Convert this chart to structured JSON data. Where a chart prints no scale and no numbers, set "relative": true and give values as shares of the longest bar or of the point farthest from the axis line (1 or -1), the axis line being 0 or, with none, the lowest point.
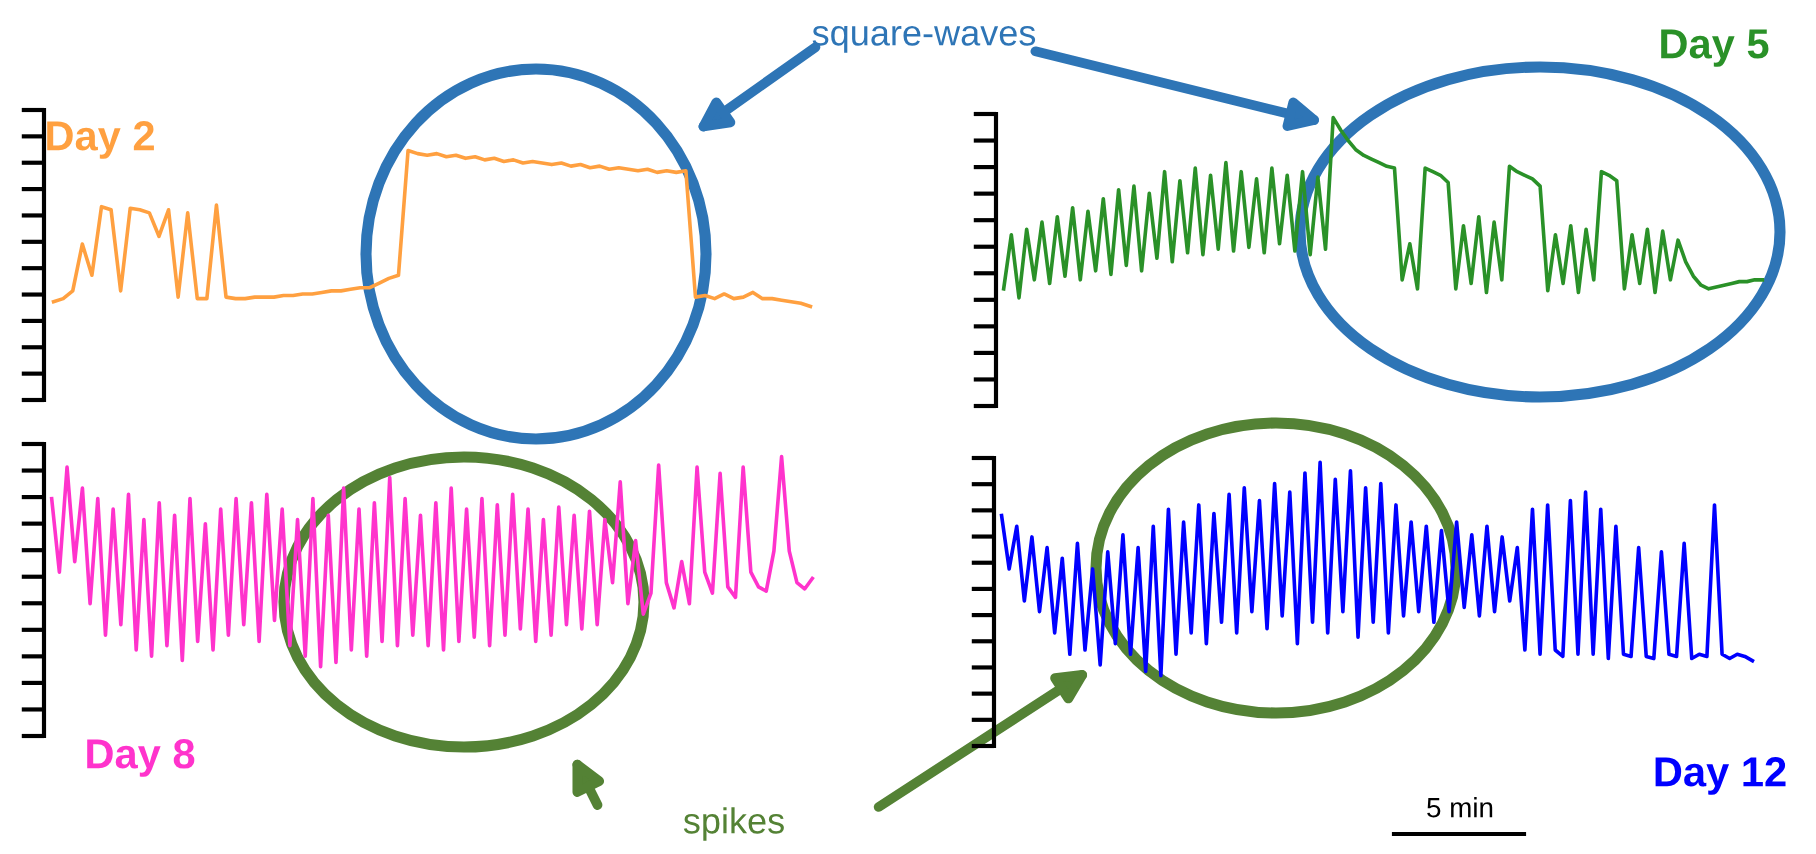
{
  "chart_data": [
    {
      "type": "line",
      "relative": true,
      "tick_labels": false,
      "categories": [
        null,
        null,
        null,
        null,
        null,
        null,
        null,
        null,
        null,
        null,
        null,
        null,
        null,
        null,
        null,
        null,
        null,
        null,
        null,
        null,
        null,
        null,
        null,
        null,
        null,
        null,
        null,
        null,
        null,
        null,
        null,
        null,
        null,
        null,
        null,
        null,
        null,
        null,
        null,
        null,
        null,
        null,
        null,
        null,
        null,
        null,
        null,
        null,
        null,
        null,
        null,
        null,
        null,
        null,
        null,
        null,
        null,
        null,
        null,
        null,
        null,
        null,
        null,
        null,
        null,
        null,
        null,
        null,
        null,
        null,
        null,
        null,
        null,
        null,
        null,
        null,
        null,
        null,
        null,
        null
      ],
      "series": [
        {
          "name": "Day 2",
          "color": "#ffa040",
          "values": [
            0.03,
            0.05,
            0.1,
            0.4,
            0.2,
            0.64,
            0.62,
            0.1,
            0.63,
            0.62,
            0.6,
            0.45,
            0.62,
            0.06,
            0.6,
            0.05,
            0.05,
            0.65,
            0.06,
            0.05,
            0.05,
            0.06,
            0.06,
            0.06,
            0.07,
            0.07,
            0.08,
            0.08,
            0.09,
            0.1,
            0.1,
            0.11,
            0.12,
            0.12,
            0.15,
            0.18,
            0.2,
            1.0,
            0.98,
            0.97,
            0.98,
            0.96,
            0.97,
            0.95,
            0.96,
            0.94,
            0.95,
            0.93,
            0.94,
            0.92,
            0.93,
            0.92,
            0.91,
            0.92,
            0.9,
            0.91,
            0.89,
            0.9,
            0.88,
            0.89,
            0.88,
            0.87,
            0.88,
            0.86,
            0.87,
            0.86,
            0.87,
            0.06,
            0.07,
            0.05,
            0.08,
            0.05,
            0.06,
            0.09,
            0.05,
            0.05,
            0.04,
            0.03,
            0.02,
            0.0
          ]
        }
      ],
      "annotations": [
        "square-waves"
      ]
    },
    {
      "type": "line",
      "relative": true,
      "tick_labels": false,
      "categories": [
        null,
        null,
        null,
        null,
        null,
        null,
        null,
        null,
        null,
        null,
        null,
        null,
        null,
        null,
        null,
        null,
        null,
        null,
        null,
        null,
        null,
        null,
        null,
        null,
        null,
        null,
        null,
        null,
        null,
        null,
        null,
        null,
        null,
        null,
        null,
        null,
        null,
        null,
        null,
        null,
        null,
        null,
        null,
        null,
        null,
        null,
        null,
        null,
        null,
        null,
        null,
        null,
        null,
        null,
        null,
        null,
        null,
        null,
        null,
        null,
        null,
        null,
        null,
        null,
        null,
        null,
        null,
        null,
        null,
        null,
        null,
        null,
        null,
        null,
        null,
        null,
        null,
        null,
        null,
        null,
        null,
        null,
        null,
        null,
        null,
        null,
        null,
        null,
        null,
        null,
        null,
        null,
        null,
        null,
        null,
        null,
        null,
        null,
        null,
        null
      ],
      "series": [
        {
          "name": "Day 5",
          "color": "#2a9128",
          "values": [
            0.05,
            0.35,
            0.0,
            0.38,
            0.1,
            0.42,
            0.08,
            0.45,
            0.12,
            0.5,
            0.1,
            0.48,
            0.15,
            0.55,
            0.13,
            0.6,
            0.18,
            0.62,
            0.15,
            0.58,
            0.22,
            0.7,
            0.2,
            0.65,
            0.25,
            0.72,
            0.24,
            0.68,
            0.27,
            0.75,
            0.26,
            0.7,
            0.28,
            0.66,
            0.25,
            0.72,
            0.3,
            0.68,
            0.26,
            0.7,
            0.24,
            0.67,
            0.27,
            1.0,
            0.93,
            0.87,
            0.82,
            0.79,
            0.77,
            0.75,
            0.73,
            0.72,
            0.1,
            0.3,
            0.05,
            0.72,
            0.7,
            0.68,
            0.64,
            0.05,
            0.4,
            0.08,
            0.45,
            0.03,
            0.42,
            0.1,
            0.73,
            0.7,
            0.68,
            0.66,
            0.62,
            0.04,
            0.35,
            0.08,
            0.4,
            0.03,
            0.38,
            0.1,
            0.7,
            0.68,
            0.65,
            0.05,
            0.35,
            0.08,
            0.38,
            0.03,
            0.37,
            0.1,
            0.32,
            0.2,
            0.12,
            0.07,
            0.05,
            0.06,
            0.07,
            0.08,
            0.09,
            0.09,
            0.1,
            0.1
          ]
        }
      ]
    },
    {
      "type": "line",
      "relative": true,
      "tick_labels": false,
      "categories": [
        null,
        null,
        null,
        null,
        null,
        null,
        null,
        null,
        null,
        null,
        null,
        null,
        null,
        null,
        null,
        null,
        null,
        null,
        null,
        null,
        null,
        null,
        null,
        null,
        null,
        null,
        null,
        null,
        null,
        null,
        null,
        null,
        null,
        null,
        null,
        null,
        null,
        null,
        null,
        null,
        null,
        null,
        null,
        null,
        null,
        null,
        null,
        null,
        null,
        null,
        null,
        null,
        null,
        null,
        null,
        null,
        null,
        null,
        null,
        null,
        null,
        null,
        null,
        null,
        null,
        null,
        null,
        null,
        null,
        null,
        null,
        null,
        null,
        null,
        null,
        null,
        null,
        null,
        null,
        null,
        null,
        null,
        null,
        null,
        null,
        null,
        null,
        null,
        null,
        null,
        null,
        null,
        null,
        null,
        null,
        null,
        null,
        null,
        null,
        null
      ],
      "series": [
        {
          "name": "Day 8",
          "color": "#ff33cc",
          "values": [
            0.8,
            0.45,
            0.95,
            0.5,
            0.85,
            0.3,
            0.8,
            0.15,
            0.75,
            0.2,
            0.82,
            0.08,
            0.7,
            0.05,
            0.78,
            0.1,
            0.72,
            0.03,
            0.8,
            0.12,
            0.68,
            0.08,
            0.75,
            0.15,
            0.8,
            0.2,
            0.78,
            0.12,
            0.82,
            0.22,
            0.75,
            0.1,
            0.7,
            0.05,
            0.8,
            0.0,
            0.72,
            0.02,
            0.85,
            0.08,
            0.75,
            0.05,
            0.78,
            0.12,
            0.9,
            0.1,
            0.8,
            0.15,
            0.72,
            0.1,
            0.78,
            0.08,
            0.85,
            0.12,
            0.75,
            0.14,
            0.8,
            0.1,
            0.77,
            0.15,
            0.82,
            0.18,
            0.75,
            0.12,
            0.7,
            0.15,
            0.76,
            0.2,
            0.72,
            0.18,
            0.74,
            0.2,
            0.7,
            0.4,
            0.88,
            0.3,
            0.6,
            0.25,
            0.35,
            0.96,
            0.4,
            0.28,
            0.5,
            0.3,
            0.95,
            0.45,
            0.35,
            0.92,
            0.38,
            0.33,
            0.95,
            0.45,
            0.38,
            0.36,
            0.55,
            1.0,
            0.55,
            0.4,
            0.37,
            0.42
          ]
        }
      ],
      "annotations": [
        "spikes"
      ]
    },
    {
      "type": "line",
      "relative": true,
      "tick_labels": false,
      "categories": [
        null,
        null,
        null,
        null,
        null,
        null,
        null,
        null,
        null,
        null,
        null,
        null,
        null,
        null,
        null,
        null,
        null,
        null,
        null,
        null,
        null,
        null,
        null,
        null,
        null,
        null,
        null,
        null,
        null,
        null,
        null,
        null,
        null,
        null,
        null,
        null,
        null,
        null,
        null,
        null,
        null,
        null,
        null,
        null,
        null,
        null,
        null,
        null,
        null,
        null,
        null,
        null,
        null,
        null,
        null,
        null,
        null,
        null,
        null,
        null,
        null,
        null,
        null,
        null,
        null,
        null,
        null,
        null,
        null,
        null,
        null,
        null,
        null,
        null,
        null,
        null,
        null,
        null,
        null,
        null,
        null,
        null,
        null,
        null,
        null,
        null,
        null,
        null,
        null,
        null,
        null,
        null,
        null,
        null,
        null,
        null,
        null,
        null,
        null,
        null
      ],
      "series": [
        {
          "name": "Day 12",
          "color": "#0000ff",
          "values": [
            0.75,
            0.5,
            0.7,
            0.35,
            0.65,
            0.3,
            0.6,
            0.2,
            0.55,
            0.1,
            0.62,
            0.12,
            0.5,
            0.05,
            0.58,
            0.15,
            0.66,
            0.1,
            0.6,
            0.02,
            0.7,
            0.0,
            0.78,
            0.1,
            0.72,
            0.2,
            0.8,
            0.15,
            0.76,
            0.25,
            0.85,
            0.2,
            0.88,
            0.3,
            0.82,
            0.22,
            0.9,
            0.28,
            0.86,
            0.15,
            0.95,
            0.25,
            1.0,
            0.2,
            0.92,
            0.3,
            0.96,
            0.18,
            0.88,
            0.25,
            0.9,
            0.2,
            0.8,
            0.28,
            0.72,
            0.3,
            0.7,
            0.25,
            0.68,
            0.3,
            0.72,
            0.32,
            0.66,
            0.28,
            0.7,
            0.3,
            0.65,
            0.35,
            0.6,
            0.12,
            0.78,
            0.1,
            0.8,
            0.12,
            0.09,
            0.82,
            0.1,
            0.86,
            0.1,
            0.78,
            0.08,
            0.7,
            0.1,
            0.09,
            0.6,
            0.09,
            0.08,
            0.58,
            0.1,
            0.09,
            0.62,
            0.08,
            0.1,
            0.09,
            0.8,
            0.1,
            0.08,
            0.1,
            0.09,
            0.07
          ]
        }
      ],
      "annotations": [
        "5 min"
      ]
    }
  ]
}
